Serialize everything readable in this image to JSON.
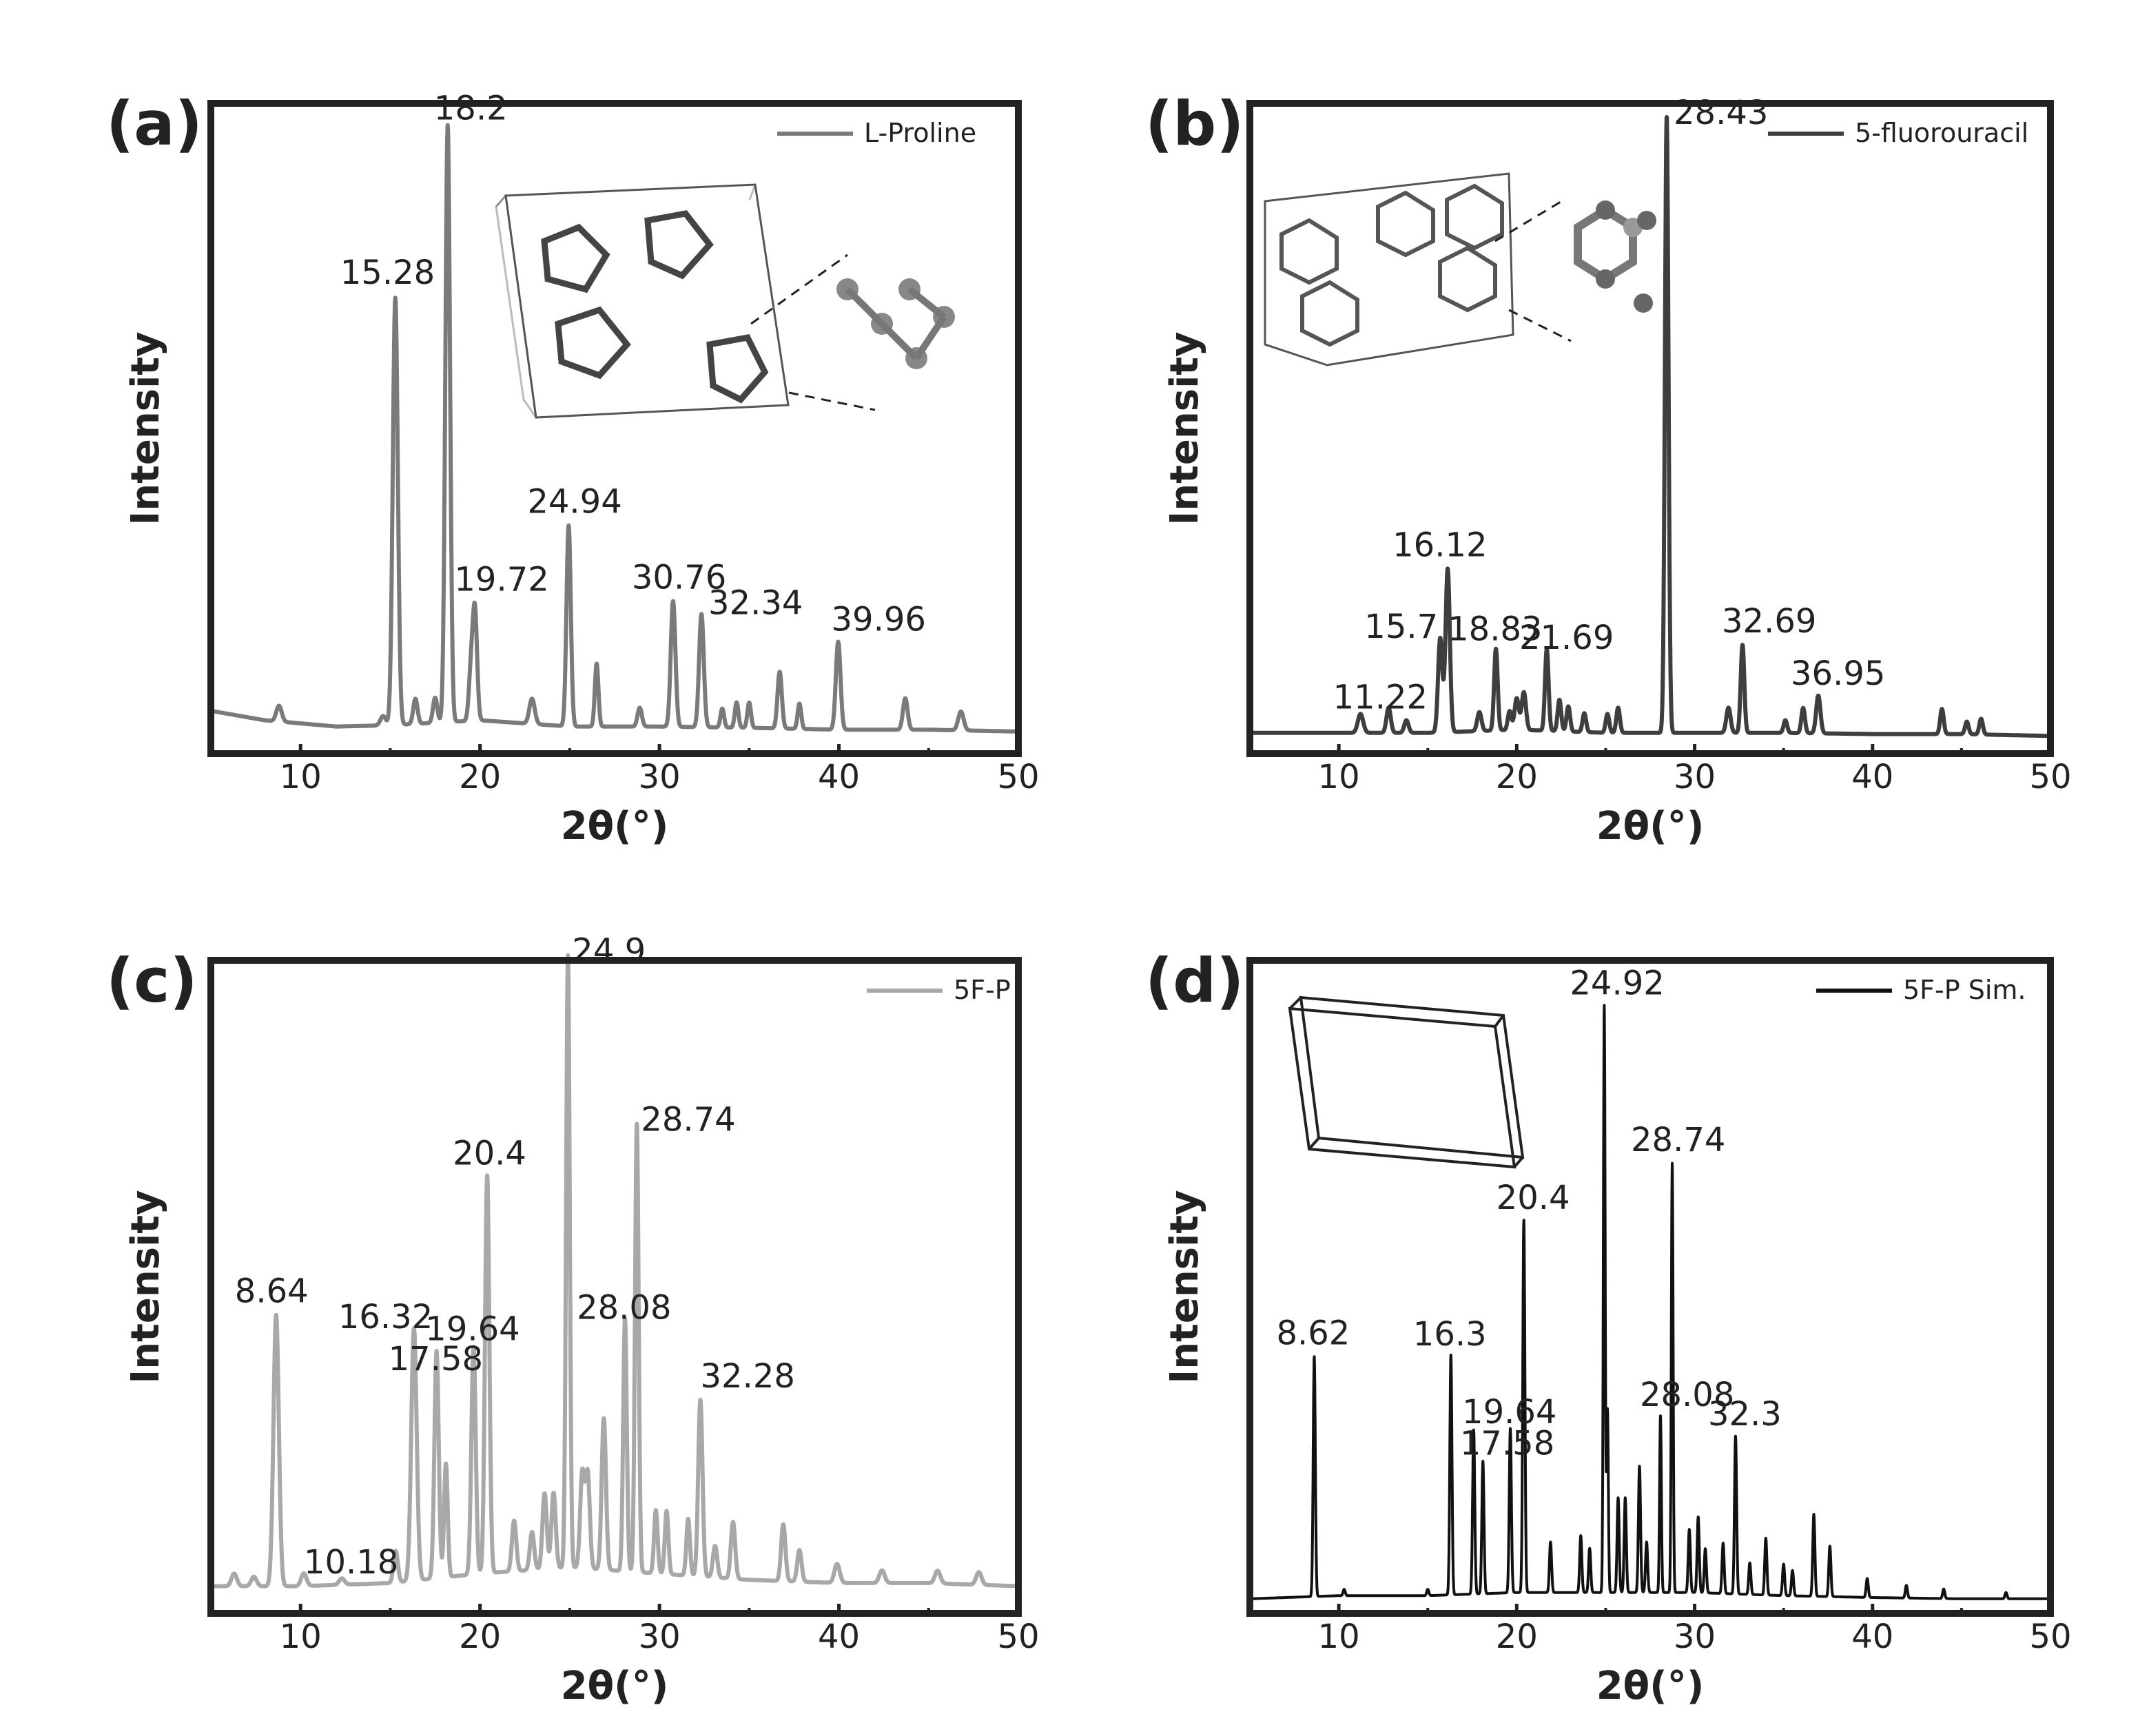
{
  "chart_data": [
    {
      "panel": "(a)",
      "type": "line",
      "xlabel": "2θ(°)",
      "ylabel": "Intensity",
      "xlim": [
        5,
        50
      ],
      "ylim": [
        0,
        100
      ],
      "xticks": [
        10,
        20,
        30,
        40,
        50
      ],
      "legend": {
        "placement": "top-right",
        "entries": [
          "L-Proline"
        ]
      },
      "color": "#7a7a7a",
      "series": [
        {
          "name": "L-Proline",
          "baseline": [
            [
              5,
              5.5
            ],
            [
              8,
              4
            ],
            [
              12,
              3
            ],
            [
              15,
              3.2
            ],
            [
              20,
              4
            ],
            [
              25,
              3
            ],
            [
              30,
              3
            ],
            [
              35,
              2.8
            ],
            [
              40,
              2.5
            ],
            [
              45,
              2.5
            ],
            [
              50,
              2.2
            ]
          ],
          "peaks": [
            [
              8.8,
              2.5,
              0.15
            ],
            [
              14.6,
              1.5,
              0.15
            ],
            [
              15.28,
              68,
              0.14
            ],
            [
              16.4,
              4,
              0.12
            ],
            [
              17.5,
              4,
              0.12
            ],
            [
              18.2,
              95,
              0.13
            ],
            [
              19.5,
              8,
              0.12
            ],
            [
              19.72,
              17,
              0.12
            ],
            [
              22.9,
              4,
              0.15
            ],
            [
              24.94,
              32,
              0.12
            ],
            [
              26.5,
              10,
              0.1
            ],
            [
              28.9,
              3,
              0.12
            ],
            [
              30.76,
              20,
              0.13
            ],
            [
              32.34,
              18,
              0.13
            ],
            [
              33.5,
              3,
              0.1
            ],
            [
              34.3,
              4,
              0.1
            ],
            [
              35.0,
              4,
              0.1
            ],
            [
              36.7,
              9,
              0.12
            ],
            [
              37.8,
              4,
              0.1
            ],
            [
              39.96,
              14,
              0.13
            ],
            [
              43.7,
              5,
              0.13
            ],
            [
              46.8,
              3,
              0.15
            ]
          ]
        }
      ],
      "annotations": [
        {
          "text": "15.28",
          "x": 15.28,
          "y": 68
        },
        {
          "text": "18.2",
          "x": 18.2,
          "y": 95
        },
        {
          "text": "19.72",
          "x": 19.72,
          "y": 17
        },
        {
          "text": "24.94",
          "x": 24.94,
          "y": 32
        },
        {
          "text": "30.76",
          "x": 30.76,
          "y": 20
        },
        {
          "text": "32.34",
          "x": 32.34,
          "y": 18
        },
        {
          "text": "39.96",
          "x": 39.96,
          "y": 14
        }
      ]
    },
    {
      "panel": "(b)",
      "type": "line",
      "xlabel": "2θ(°)",
      "ylabel": "Intensity",
      "xlim": [
        5,
        50
      ],
      "ylim": [
        0,
        100
      ],
      "xticks": [
        10,
        20,
        30,
        40,
        50
      ],
      "legend": {
        "placement": "top-right",
        "entries": [
          "5-fluorouracil"
        ]
      },
      "color": "#3e3e3e",
      "series": [
        {
          "name": "5-fluorouracil",
          "baseline": [
            [
              5,
              2
            ],
            [
              10,
              2
            ],
            [
              15,
              2
            ],
            [
              20,
              2.5
            ],
            [
              25,
              2
            ],
            [
              30,
              2
            ],
            [
              35,
              2
            ],
            [
              40,
              1.8
            ],
            [
              45,
              1.8
            ],
            [
              50,
              1.5
            ]
          ],
          "peaks": [
            [
              11.22,
              3,
              0.15
            ],
            [
              12.8,
              4,
              0.12
            ],
            [
              13.8,
              2,
              0.12
            ],
            [
              15.7,
              15,
              0.12
            ],
            [
              16.12,
              26,
              0.12
            ],
            [
              17.9,
              3,
              0.12
            ],
            [
              18.83,
              13,
              0.1
            ],
            [
              19.6,
              3,
              0.1
            ],
            [
              20.0,
              5,
              0.12
            ],
            [
              20.4,
              6,
              0.12
            ],
            [
              21.69,
              13,
              0.1
            ],
            [
              22.4,
              5,
              0.1
            ],
            [
              22.9,
              4,
              0.1
            ],
            [
              23.8,
              3,
              0.1
            ],
            [
              25.1,
              3,
              0.1
            ],
            [
              25.7,
              4,
              0.1
            ],
            [
              28.43,
              98,
              0.1
            ],
            [
              31.9,
              4,
              0.12
            ],
            [
              32.69,
              14,
              0.1
            ],
            [
              35.1,
              2,
              0.1
            ],
            [
              36.1,
              4,
              0.1
            ],
            [
              36.95,
              6,
              0.12
            ],
            [
              43.9,
              4,
              0.1
            ],
            [
              45.3,
              2,
              0.1
            ],
            [
              46.1,
              2.5,
              0.1
            ]
          ]
        }
      ],
      "annotations": [
        {
          "text": "11.22",
          "x": 11.22,
          "y": 3
        },
        {
          "text": "15.7",
          "x": 15.7,
          "y": 15
        },
        {
          "text": "16.12",
          "x": 16.12,
          "y": 26
        },
        {
          "text": "18.83",
          "x": 18.83,
          "y": 13
        },
        {
          "text": "21.69",
          "x": 21.69,
          "y": 13
        },
        {
          "text": "28.43",
          "x": 28.43,
          "y": 98
        },
        {
          "text": "32.69",
          "x": 32.69,
          "y": 14
        },
        {
          "text": "36.95",
          "x": 36.95,
          "y": 6
        }
      ]
    },
    {
      "panel": "(c)",
      "type": "line",
      "xlabel": "2θ(°)",
      "ylabel": "Intensity",
      "xlim": [
        5,
        50
      ],
      "ylim": [
        0,
        100
      ],
      "xticks": [
        10,
        20,
        30,
        40,
        50
      ],
      "legend": {
        "placement": "top-right",
        "entries": [
          "5F-P"
        ]
      },
      "color": "#a8a8a8",
      "series": [
        {
          "name": "5F-P",
          "baseline": [
            [
              5,
              3
            ],
            [
              10,
              3
            ],
            [
              15,
              3.5
            ],
            [
              20,
              5
            ],
            [
              25,
              6
            ],
            [
              30,
              5
            ],
            [
              35,
              4
            ],
            [
              40,
              3.5
            ],
            [
              45,
              3.5
            ],
            [
              50,
              3
            ]
          ],
          "peaks": [
            [
              6.3,
              2,
              0.15
            ],
            [
              7.4,
              1.5,
              0.15
            ],
            [
              8.64,
              43,
              0.15
            ],
            [
              10.18,
              2,
              0.15
            ],
            [
              12.3,
              1,
              0.15
            ],
            [
              15.3,
              5,
              0.12
            ],
            [
              16.32,
              40,
              0.15
            ],
            [
              17.58,
              36,
              0.12
            ],
            [
              18.1,
              18,
              0.1
            ],
            [
              19.64,
              36,
              0.12
            ],
            [
              20.4,
              63,
              0.12
            ],
            [
              21.9,
              8,
              0.12
            ],
            [
              22.9,
              6,
              0.12
            ],
            [
              23.6,
              12,
              0.12
            ],
            [
              24.1,
              12,
              0.12
            ],
            [
              24.9,
              97,
              0.1
            ],
            [
              25.7,
              15,
              0.12
            ],
            [
              26.0,
              15,
              0.12
            ],
            [
              26.9,
              24,
              0.12
            ],
            [
              28.08,
              40,
              0.1
            ],
            [
              28.74,
              71,
              0.1
            ],
            [
              29.8,
              10,
              0.1
            ],
            [
              30.4,
              10,
              0.1
            ],
            [
              31.6,
              9,
              0.1
            ],
            [
              32.28,
              28,
              0.12
            ],
            [
              33.1,
              5,
              0.12
            ],
            [
              34.1,
              9,
              0.12
            ],
            [
              36.9,
              9,
              0.12
            ],
            [
              37.8,
              5,
              0.12
            ],
            [
              39.9,
              3,
              0.15
            ],
            [
              42.4,
              2,
              0.15
            ],
            [
              45.5,
              2,
              0.15
            ],
            [
              47.8,
              2,
              0.15
            ]
          ]
        }
      ],
      "annotations": [
        {
          "text": "8.64",
          "x": 8.64,
          "y": 43
        },
        {
          "text": "10.18",
          "x": 10.18,
          "y": 2
        },
        {
          "text": "16.32",
          "x": 16.32,
          "y": 40
        },
        {
          "text": "17.58",
          "x": 17.58,
          "y": 36
        },
        {
          "text": "19.64",
          "x": 19.64,
          "y": 36
        },
        {
          "text": "20.4",
          "x": 20.4,
          "y": 63
        },
        {
          "text": "24.9",
          "x": 24.9,
          "y": 97
        },
        {
          "text": "28.08",
          "x": 28.08,
          "y": 40
        },
        {
          "text": "28.74",
          "x": 28.74,
          "y": 71
        },
        {
          "text": "32.28",
          "x": 32.28,
          "y": 28
        }
      ]
    },
    {
      "panel": "(d)",
      "type": "line",
      "xlabel": "2θ(°)",
      "ylabel": "Intensity",
      "xlim": [
        5,
        50
      ],
      "ylim": [
        0,
        100
      ],
      "xticks": [
        10,
        20,
        30,
        40,
        50
      ],
      "legend": {
        "placement": "top-right",
        "entries": [
          "5F-P Sim."
        ]
      },
      "color": "#111111",
      "series": [
        {
          "name": "5F-P Sim.",
          "baseline": [
            [
              5,
              1
            ],
            [
              10,
              1.5
            ],
            [
              15,
              1.5
            ],
            [
              20,
              2
            ],
            [
              25,
              2
            ],
            [
              30,
              2
            ],
            [
              35,
              1.5
            ],
            [
              40,
              1.2
            ],
            [
              45,
              1
            ],
            [
              50,
              1
            ]
          ],
          "peaks": [
            [
              8.62,
              38,
              0.06
            ],
            [
              10.3,
              1,
              0.06
            ],
            [
              15.0,
              1,
              0.06
            ],
            [
              16.3,
              38,
              0.06
            ],
            [
              17.58,
              26,
              0.06
            ],
            [
              18.1,
              21,
              0.06
            ],
            [
              19.64,
              26,
              0.06
            ],
            [
              20.4,
              59,
              0.06
            ],
            [
              21.9,
              8,
              0.06
            ],
            [
              23.6,
              9,
              0.06
            ],
            [
              24.1,
              7,
              0.06
            ],
            [
              24.92,
              93,
              0.05
            ],
            [
              25.1,
              29,
              0.05
            ],
            [
              25.7,
              15,
              0.06
            ],
            [
              26.1,
              15,
              0.06
            ],
            [
              26.9,
              20,
              0.06
            ],
            [
              27.3,
              8,
              0.06
            ],
            [
              28.08,
              28,
              0.05
            ],
            [
              28.74,
              68,
              0.05
            ],
            [
              29.7,
              10,
              0.06
            ],
            [
              30.2,
              12,
              0.06
            ],
            [
              30.6,
              7,
              0.06
            ],
            [
              31.6,
              8,
              0.06
            ],
            [
              32.3,
              25,
              0.06
            ],
            [
              33.1,
              5,
              0.06
            ],
            [
              34.0,
              9,
              0.06
            ],
            [
              35.0,
              5,
              0.06
            ],
            [
              35.5,
              4,
              0.06
            ],
            [
              36.7,
              13,
              0.06
            ],
            [
              37.6,
              8,
              0.06
            ],
            [
              39.7,
              3,
              0.06
            ],
            [
              41.9,
              2,
              0.06
            ],
            [
              44.0,
              1.5,
              0.06
            ],
            [
              47.5,
              1,
              0.06
            ]
          ]
        }
      ],
      "annotations": [
        {
          "text": "8.62",
          "x": 8.62,
          "y": 38
        },
        {
          "text": "16.3",
          "x": 16.3,
          "y": 38
        },
        {
          "text": "17.58",
          "x": 17.58,
          "y": 26
        },
        {
          "text": "19.64",
          "x": 19.64,
          "y": 26
        },
        {
          "text": "20.4",
          "x": 20.4,
          "y": 59
        },
        {
          "text": "24.92",
          "x": 24.92,
          "y": 93
        },
        {
          "text": "28.08",
          "x": 28.08,
          "y": 28
        },
        {
          "text": "28.74",
          "x": 28.74,
          "y": 68
        },
        {
          "text": "32.3",
          "x": 32.3,
          "y": 25
        }
      ]
    }
  ]
}
